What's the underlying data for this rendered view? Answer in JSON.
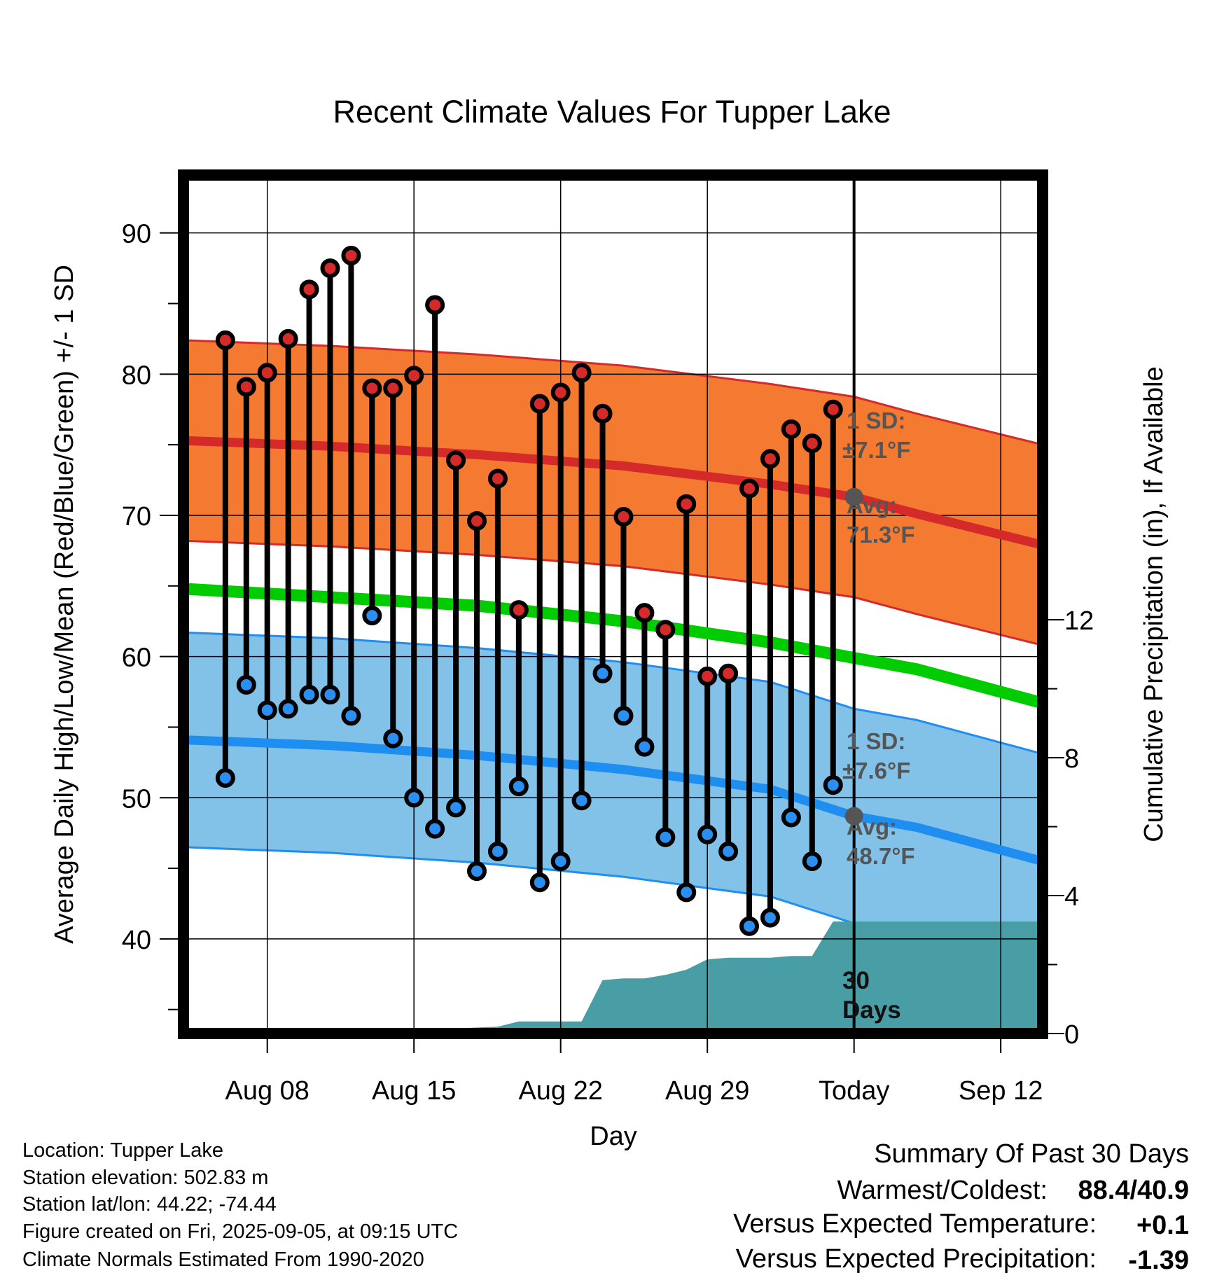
{
  "chart_data": {
    "type": "line",
    "title": "Recent Climate Values For Tupper Lake",
    "xlabel": "Day",
    "ylabel": "Average Daily High/Low/Mean (Red/Blue/Green) +/- 1 SD",
    "y2label": "Cumulative Precipitation (in), If Available",
    "x_ticks": [
      "Aug 08",
      "Aug 15",
      "Aug 22",
      "Aug 29",
      "Today",
      "Sep 12"
    ],
    "y_ticks": [
      40,
      50,
      60,
      70,
      80,
      90
    ],
    "y2_ticks": [
      0,
      4,
      8,
      12
    ],
    "ylim": [
      33.3,
      94.1
    ],
    "y2lim": [
      0,
      24.9
    ],
    "xlim": [
      "Aug 04",
      "Sep 14"
    ],
    "grid": true,
    "today": "Sep 05",
    "dates": [
      "Aug 06",
      "Aug 07",
      "Aug 08",
      "Aug 09",
      "Aug 10",
      "Aug 11",
      "Aug 12",
      "Aug 13",
      "Aug 14",
      "Aug 15",
      "Aug 16",
      "Aug 17",
      "Aug 18",
      "Aug 19",
      "Aug 20",
      "Aug 21",
      "Aug 22",
      "Aug 23",
      "Aug 24",
      "Aug 25",
      "Aug 26",
      "Aug 27",
      "Aug 28",
      "Aug 29",
      "Aug 30",
      "Aug 31",
      "Sep 01",
      "Sep 02",
      "Sep 03",
      "Sep 04"
    ],
    "highs": [
      82.4,
      79.1,
      80.1,
      82.5,
      86.0,
      87.5,
      88.4,
      79.0,
      79.0,
      79.9,
      84.9,
      73.9,
      69.6,
      72.6,
      63.3,
      77.9,
      78.7,
      80.1,
      77.2,
      69.9,
      63.1,
      61.9,
      70.8,
      58.6,
      58.8,
      71.9,
      74.0,
      76.1,
      75.1,
      77.5
    ],
    "lows": [
      51.4,
      58.0,
      56.2,
      56.3,
      57.3,
      57.3,
      55.8,
      62.9,
      54.2,
      50.0,
      47.8,
      49.3,
      44.8,
      46.2,
      50.8,
      44.0,
      45.5,
      49.8,
      58.8,
      55.8,
      53.6,
      47.2,
      43.3,
      47.4,
      46.2,
      40.9,
      41.5,
      48.6,
      45.5,
      50.9
    ],
    "normal_dates": [
      "Aug 04",
      "Aug 11",
      "Aug 18",
      "Aug 25",
      "Sep 01",
      "Sep 05",
      "Sep 08",
      "Sep 14"
    ],
    "normal_high": [
      75.3,
      74.9,
      74.3,
      73.5,
      72.2,
      71.3,
      70.1,
      67.9
    ],
    "normal_low": [
      54.1,
      53.7,
      53.0,
      52.0,
      50.6,
      48.7,
      47.9,
      45.5
    ],
    "normal_mean": [
      64.8,
      64.2,
      63.6,
      62.5,
      61.0,
      59.9,
      59.1,
      56.7
    ],
    "sd_high": 7.1,
    "sd_low": 7.6,
    "precip_dates": [
      "Aug 04",
      "Aug 15",
      "Aug 16",
      "Aug 17",
      "Aug 19",
      "Aug 20",
      "Aug 21",
      "Aug 23",
      "Aug 24",
      "Aug 25",
      "Aug 26",
      "Aug 27",
      "Aug 28",
      "Aug 29",
      "Aug 30",
      "Aug 31",
      "Sep 01",
      "Sep 02",
      "Sep 03",
      "Sep 04",
      "Sep 05",
      "Sep 14"
    ],
    "precip_cum": [
      0.0,
      0.03,
      0.08,
      0.15,
      0.2,
      0.35,
      0.35,
      0.35,
      1.55,
      1.6,
      1.6,
      1.7,
      1.85,
      2.15,
      2.2,
      2.2,
      2.2,
      2.25,
      2.25,
      3.25,
      3.25,
      3.25
    ],
    "colors": {
      "high_band": "#f47a31",
      "high_line": "#d42a2a",
      "low_band": "#82c1e8",
      "low_line": "#1e8ff0",
      "mean_line": "#00cc00",
      "precip": "#499da5",
      "high_marker": "#d42a2a",
      "low_marker": "#2a8ff0",
      "temp_positive": "#cc2222",
      "precip_negative": "#a0522d"
    },
    "annotations": {
      "high_sd_label": "1 SD:",
      "high_sd_value": "±7.1°F",
      "high_avg_label": "Avg:",
      "high_avg_value": "71.3°F",
      "low_sd_label": "1 SD:",
      "low_sd_value": "±7.6°F",
      "low_avg_label": "Avg:",
      "low_avg_value": "48.7°F",
      "window_count": "30",
      "window_unit": "Days"
    }
  },
  "info": {
    "location": "Location: Tupper Lake",
    "elevation": "Station elevation: 502.83 m",
    "latlon": "Station lat/lon: 44.22; -74.44",
    "created": "Figure created on Fri, 2025-09-05, at 09:15 UTC",
    "normals": "Climate Normals Estimated From 1990-2020"
  },
  "summary": {
    "heading": "Summary Of Past 30 Days",
    "warmest_label": "Warmest/Coldest:",
    "warmest_value": "88.4/40.9",
    "temp_label": "Versus Expected Temperature:",
    "temp_value": "+0.1",
    "precip_label": "Versus Expected Precipitation:",
    "precip_value": "-1.39"
  }
}
